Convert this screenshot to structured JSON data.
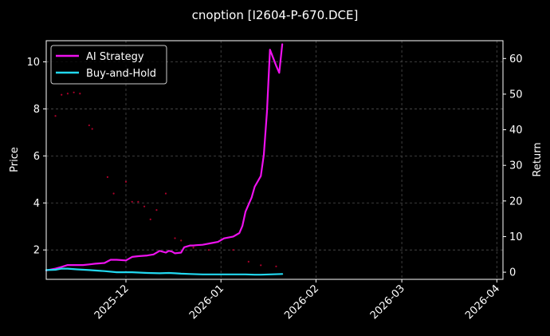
{
  "chart_data": {
    "type": "line",
    "title": "cnoption [I2604-P-670.DCE]",
    "ylabel_left": "Price",
    "ylabel_right": "Return",
    "x_domain": [
      "2025-11-05",
      "2026-04-03"
    ],
    "xticks": [
      "2025-12",
      "2026-01",
      "2026-02",
      "2026-03",
      "2026-04"
    ],
    "ylim_left": [
      0.75,
      10.9
    ],
    "yticks_left": [
      2,
      4,
      6,
      8,
      10
    ],
    "ylim_right": [
      -2.0,
      65.0
    ],
    "yticks_right": [
      0,
      10,
      20,
      30,
      40,
      50,
      60
    ],
    "grid": true,
    "legend_position": "top-left",
    "colors": {
      "background": "#000000",
      "axes": "#ffffff",
      "grid": "#4d4d4d",
      "ai_strategy": "#ee11ee",
      "buy_and_hold": "#22d8f0",
      "price_points": "#cc0033"
    },
    "series": [
      {
        "name": "AI Strategy",
        "axis": "right",
        "color": "#ee11ee",
        "x": [
          "2025-11-05",
          "2025-11-08",
          "2025-11-10",
          "2025-11-12",
          "2025-11-14",
          "2025-11-17",
          "2025-11-19",
          "2025-11-21",
          "2025-11-24",
          "2025-11-26",
          "2025-11-28",
          "2025-12-01",
          "2025-12-03",
          "2025-12-05",
          "2025-12-08",
          "2025-12-10",
          "2025-12-12",
          "2025-12-14",
          "2025-12-15",
          "2025-12-16",
          "2025-12-17",
          "2025-12-19",
          "2025-12-20",
          "2025-12-22",
          "2025-12-23",
          "2025-12-24",
          "2025-12-26",
          "2025-12-29",
          "2025-12-31",
          "2026-01-02",
          "2026-01-05",
          "2026-01-07",
          "2026-01-08",
          "2026-01-09",
          "2026-01-11",
          "2026-01-12",
          "2026-01-14",
          "2026-01-15",
          "2026-01-16",
          "2026-01-17",
          "2026-01-19",
          "2026-01-20",
          "2026-01-21"
        ],
        "values": [
          0.5,
          1.0,
          1.5,
          2.0,
          2.0,
          2.0,
          2.2,
          2.4,
          2.6,
          3.5,
          3.5,
          3.3,
          4.3,
          4.5,
          4.7,
          5.0,
          6.0,
          5.5,
          6.0,
          5.8,
          5.3,
          5.5,
          7.0,
          7.5,
          7.5,
          7.6,
          7.7,
          8.2,
          8.5,
          9.5,
          10.0,
          11.0,
          13.0,
          17.0,
          21.0,
          24.0,
          27.0,
          33.0,
          45.0,
          62.5,
          58.0,
          56.0,
          64.0
        ]
      },
      {
        "name": "Buy-and-Hold",
        "axis": "right",
        "color": "#22d8f0",
        "x": [
          "2025-11-05",
          "2025-11-08",
          "2025-11-10",
          "2025-11-12",
          "2025-11-15",
          "2025-11-19",
          "2025-11-24",
          "2025-11-28",
          "2025-12-03",
          "2025-12-08",
          "2025-12-12",
          "2025-12-15",
          "2025-12-17",
          "2025-12-19",
          "2025-12-22",
          "2025-12-26",
          "2025-12-31",
          "2026-01-05",
          "2026-01-09",
          "2026-01-12",
          "2026-01-14",
          "2026-01-17",
          "2026-01-21"
        ],
        "values": [
          0.6,
          0.7,
          1.0,
          1.0,
          0.8,
          0.6,
          0.3,
          0.0,
          0.0,
          -0.2,
          -0.3,
          -0.2,
          -0.3,
          -0.4,
          -0.5,
          -0.6,
          -0.6,
          -0.6,
          -0.6,
          -0.7,
          -0.7,
          -0.6,
          -0.5
        ]
      }
    ],
    "price_points": {
      "axis": "left",
      "x": [
        "2025-11-08",
        "2025-11-10",
        "2025-11-12",
        "2025-11-14",
        "2025-11-16",
        "2025-11-19",
        "2025-11-20",
        "2025-11-25",
        "2025-11-27",
        "2025-12-01",
        "2025-12-03",
        "2025-12-05",
        "2025-12-07",
        "2025-12-09",
        "2025-12-11",
        "2025-12-14",
        "2025-12-17",
        "2025-12-19",
        "2025-12-23",
        "2025-12-28",
        "2026-01-05",
        "2026-01-10",
        "2026-01-14",
        "2026-01-19"
      ],
      "y": [
        7.7,
        8.6,
        8.65,
        8.7,
        8.65,
        7.3,
        7.15,
        5.1,
        4.4,
        4.9,
        4.05,
        4.05,
        3.85,
        3.3,
        3.7,
        4.4,
        2.5,
        2.4,
        2.1,
        2.0,
        2.0,
        1.5,
        1.35,
        1.3
      ]
    }
  }
}
